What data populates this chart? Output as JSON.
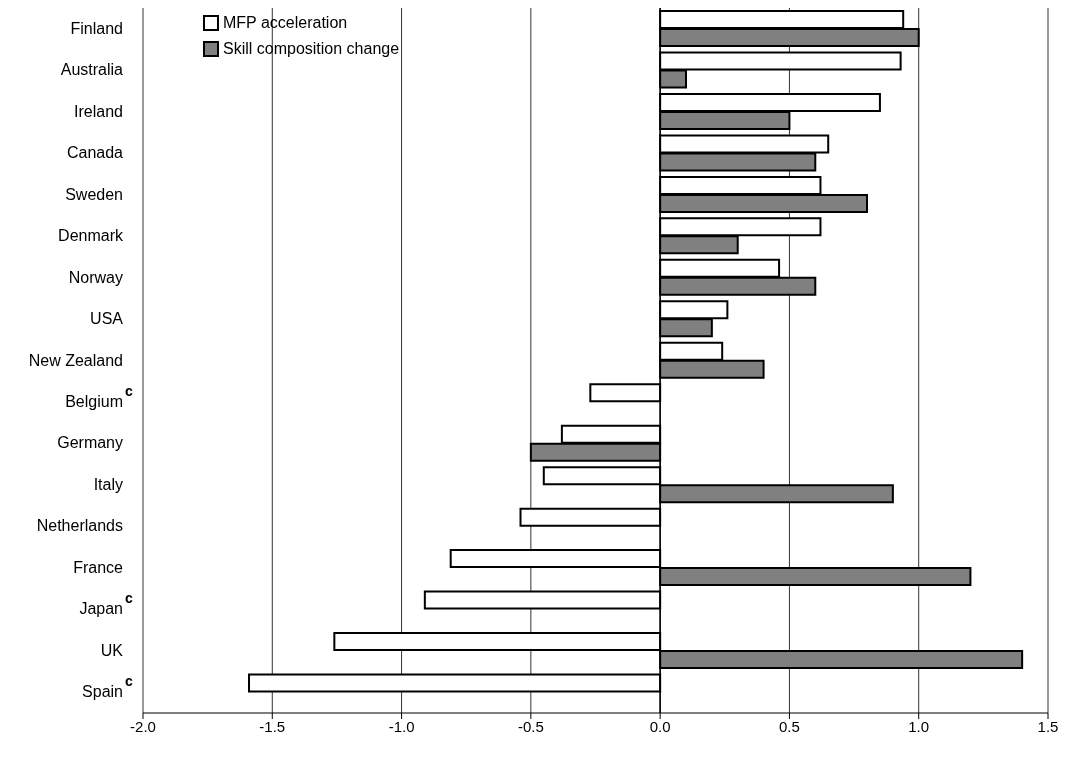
{
  "chart_data": {
    "type": "bar",
    "orientation": "horizontal",
    "categories": [
      "Finland",
      "Australia",
      "Ireland",
      "Canada",
      "Sweden",
      "Denmark",
      "Norway",
      "USA",
      "New Zealand",
      "Belgium$^{c}$",
      "Germany",
      "Italy",
      "Netherlands",
      "France",
      "Japan$^{c}$",
      "UK",
      "Spain$^{c}$"
    ],
    "series": [
      {
        "name": "MFP acceleration",
        "color": "#ffffff",
        "values": [
          0.94,
          0.93,
          0.85,
          0.65,
          0.62,
          0.62,
          0.46,
          0.26,
          0.24,
          -0.27,
          -0.38,
          -0.45,
          -0.54,
          -0.81,
          -0.91,
          -1.26,
          -1.59
        ]
      },
      {
        "name": "Skill composition change",
        "color": "#808080",
        "values": [
          1.0,
          0.1,
          0.5,
          0.6,
          0.8,
          0.3,
          0.6,
          0.2,
          0.4,
          null,
          -0.5,
          0.9,
          null,
          1.2,
          null,
          1.4,
          null
        ]
      }
    ],
    "xlim": [
      -2,
      1.5
    ],
    "xticks": [
      {
        "value": -2,
        "label": "-2.0"
      },
      {
        "value": -1.5,
        "label": "-1.5"
      },
      {
        "value": -1,
        "label": "-1.0"
      },
      {
        "value": -0.5,
        "label": "-0.5"
      },
      {
        "value": 0,
        "label": "0.0"
      },
      {
        "value": 0.5,
        "label": "0.5"
      },
      {
        "value": 1,
        "label": "1.0"
      },
      {
        "value": 1.5,
        "label": "1.5"
      }
    ],
    "grid": "x",
    "legend": "top left"
  }
}
